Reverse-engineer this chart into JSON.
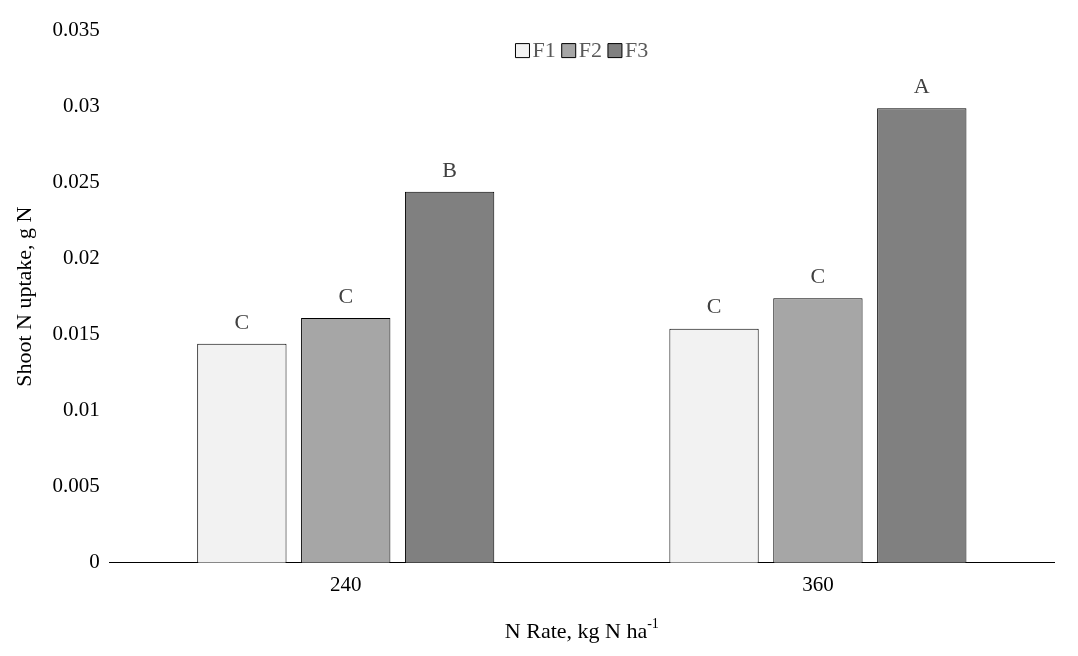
{
  "chart_data": {
    "type": "bar",
    "xlabel": "N Rate, kg N ha$^{-1}$",
    "ylabel": "Shoot N uptake, g N",
    "categories": [
      "240",
      "360"
    ],
    "series": [
      {
        "name": "F1",
        "color": "#f2f2f2",
        "values": [
          0.0144,
          0.0154
        ],
        "value_labels": [
          "C",
          "C"
        ]
      },
      {
        "name": "F2",
        "color": "#a6a6a6",
        "values": [
          0.0161,
          0.0174
        ],
        "value_labels": [
          "C",
          "C"
        ]
      },
      {
        "name": "F3",
        "color": "#808080",
        "values": [
          0.0244,
          0.0299
        ],
        "value_labels": [
          "B",
          "A"
        ]
      }
    ],
    "ylim": [
      0,
      0.035
    ],
    "yticks": [
      0,
      0.005,
      0.01,
      0.015,
      0.02,
      0.025,
      0.03,
      0.035
    ],
    "grid": false,
    "legend": "top"
  }
}
